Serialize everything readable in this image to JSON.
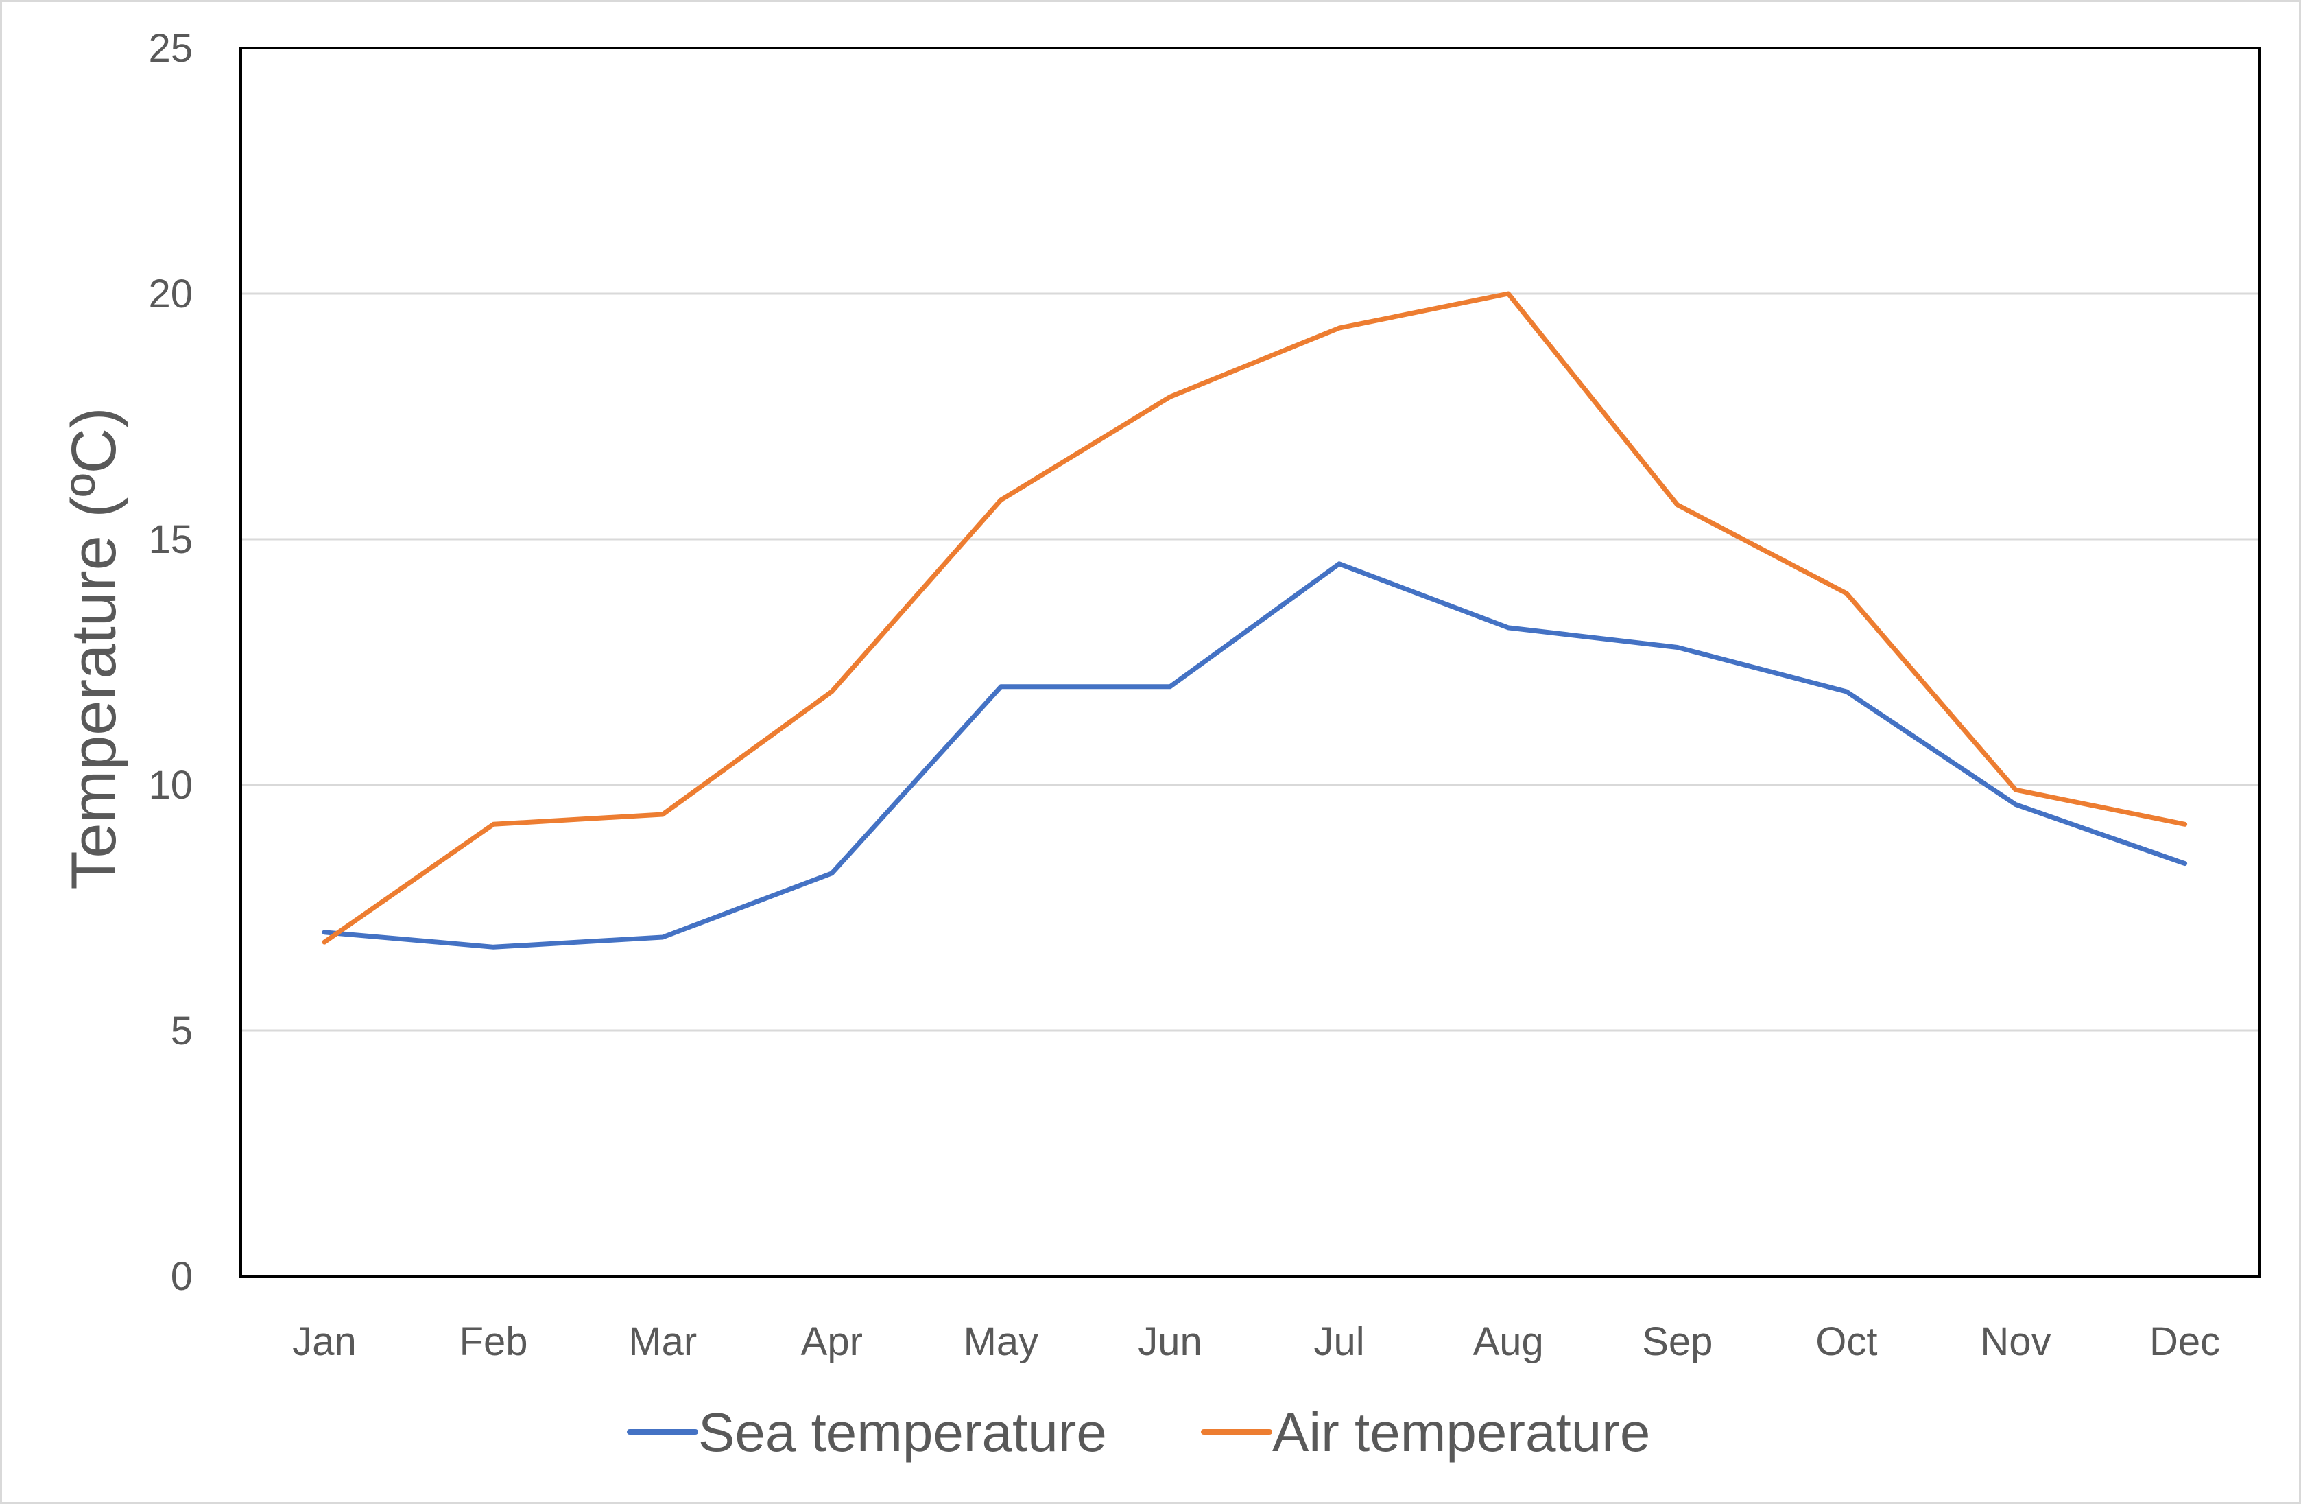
{
  "chart_data": {
    "type": "line",
    "title": "",
    "xlabel": "",
    "ylabel": "Temperature (ºC)",
    "categories": [
      "Jan",
      "Feb",
      "Mar",
      "Apr",
      "May",
      "Jun",
      "Jul",
      "Aug",
      "Sep",
      "Oct",
      "Nov",
      "Dec"
    ],
    "ylim": [
      0,
      25
    ],
    "yticks": [
      0,
      5,
      10,
      15,
      20,
      25
    ],
    "grid": true,
    "legend_position": "bottom",
    "series": [
      {
        "name": "Sea temperature",
        "color": "#4472c4",
        "values": [
          7.0,
          6.7,
          6.9,
          8.2,
          12.0,
          12.0,
          14.5,
          13.2,
          12.8,
          11.9,
          9.6,
          8.4
        ]
      },
      {
        "name": "Air temperature",
        "color": "#ed7d31",
        "values": [
          6.8,
          9.2,
          9.4,
          11.9,
          15.8,
          17.9,
          19.3,
          20.0,
          15.7,
          13.9,
          9.9,
          9.2
        ]
      }
    ]
  }
}
